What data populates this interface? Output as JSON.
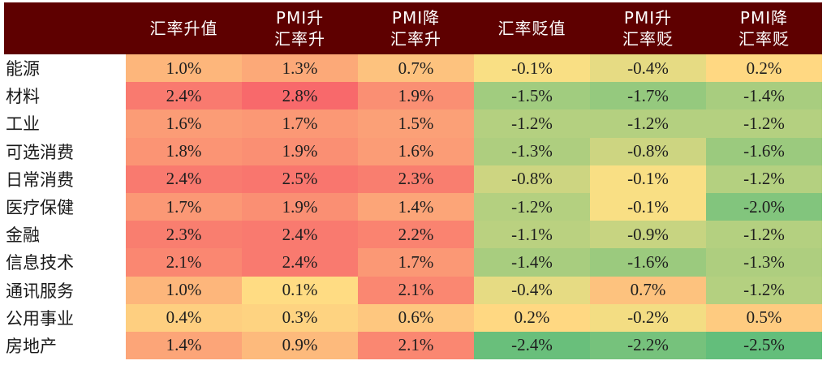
{
  "chart_data": {
    "type": "heatmap",
    "title": "",
    "columns": [
      "汇率升值",
      "PMI升\n汇率升",
      "PMI降\n汇率升",
      "汇率贬值",
      "PMI升\n汇率贬",
      "PMI降\n汇率贬"
    ],
    "rows": [
      "能源",
      "材料",
      "工业",
      "可选消费",
      "日常消费",
      "医疗保健",
      "金融",
      "信息技术",
      "通讯服务",
      "公用事业",
      "房地产"
    ],
    "values": [
      [
        1.0,
        1.3,
        0.7,
        -0.1,
        -0.4,
        0.2
      ],
      [
        2.4,
        2.8,
        1.9,
        -1.5,
        -1.7,
        -1.4
      ],
      [
        1.6,
        1.7,
        1.5,
        -1.2,
        -1.2,
        -1.2
      ],
      [
        1.8,
        1.9,
        1.6,
        -1.3,
        -0.8,
        -1.6
      ],
      [
        2.4,
        2.5,
        2.3,
        -0.8,
        -0.1,
        -1.2
      ],
      [
        1.7,
        1.9,
        1.4,
        -1.2,
        -0.1,
        -2.0
      ],
      [
        2.3,
        2.4,
        2.2,
        -1.1,
        -0.9,
        -1.2
      ],
      [
        2.1,
        2.4,
        1.7,
        -1.4,
        -1.6,
        -1.3
      ],
      [
        1.0,
        0.1,
        2.1,
        -0.4,
        0.7,
        -1.2
      ],
      [
        0.4,
        0.3,
        0.6,
        0.2,
        -0.2,
        0.5
      ],
      [
        1.4,
        0.9,
        2.1,
        -2.4,
        -2.2,
        -2.5
      ]
    ],
    "unit": "%",
    "color_scale": {
      "low": "#63be7b",
      "mid": "#ffe084",
      "high": "#f8696b"
    }
  },
  "header": {
    "bg": "#5e0000",
    "labels": [
      "",
      "汇率升值",
      "PMI升\n汇率升",
      "PMI降\n汇率升",
      "汇率贬值",
      "PMI升\n汇率贬",
      "PMI降\n汇率贬"
    ]
  },
  "table": {
    "rows": [
      {
        "label": "能源",
        "cells": [
          "1.0%",
          "1.3%",
          "0.7%",
          "-0.1%",
          "-0.4%",
          "0.2%"
        ]
      },
      {
        "label": "材料",
        "cells": [
          "2.4%",
          "2.8%",
          "1.9%",
          "-1.5%",
          "-1.7%",
          "-1.4%"
        ]
      },
      {
        "label": "工业",
        "cells": [
          "1.6%",
          "1.7%",
          "1.5%",
          "-1.2%",
          "-1.2%",
          "-1.2%"
        ]
      },
      {
        "label": "可选消费",
        "cells": [
          "1.8%",
          "1.9%",
          "1.6%",
          "-1.3%",
          "-0.8%",
          "-1.6%"
        ]
      },
      {
        "label": "日常消费",
        "cells": [
          "2.4%",
          "2.5%",
          "2.3%",
          "-0.8%",
          "-0.1%",
          "-1.2%"
        ]
      },
      {
        "label": "医疗保健",
        "cells": [
          "1.7%",
          "1.9%",
          "1.4%",
          "-1.2%",
          "-0.1%",
          "-2.0%"
        ]
      },
      {
        "label": "金融",
        "cells": [
          "2.3%",
          "2.4%",
          "2.2%",
          "-1.1%",
          "-0.9%",
          "-1.2%"
        ]
      },
      {
        "label": "信息技术",
        "cells": [
          "2.1%",
          "2.4%",
          "1.7%",
          "-1.4%",
          "-1.6%",
          "-1.3%"
        ]
      },
      {
        "label": "通讯服务",
        "cells": [
          "1.0%",
          "0.1%",
          "2.1%",
          "-0.4%",
          "0.7%",
          "-1.2%"
        ]
      },
      {
        "label": "公用事业",
        "cells": [
          "0.4%",
          "0.3%",
          "0.6%",
          "0.2%",
          "-0.2%",
          "0.5%"
        ]
      },
      {
        "label": "房地产",
        "cells": [
          "1.4%",
          "0.9%",
          "2.1%",
          "-2.4%",
          "-2.2%",
          "-2.5%"
        ]
      }
    ]
  }
}
